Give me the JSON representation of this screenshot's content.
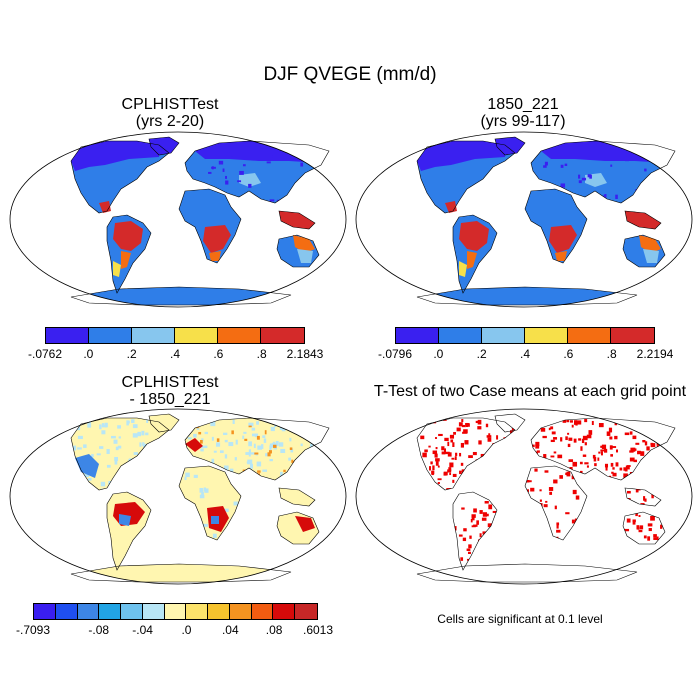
{
  "title": "DJF QVEGE (mm/d)",
  "panels": [
    {
      "title1": "CPLHISTTest",
      "title2": "(yrs 2-20)"
    },
    {
      "title1": "1850_221",
      "title2": "(yrs 99-117)"
    },
    {
      "title1": "CPLHISTTest",
      "title2": "- 1850_221"
    },
    {
      "title1": "T-Test of two Case means at each grid point",
      "title2": ""
    }
  ],
  "colorbars": {
    "case1": {
      "colors": [
        "#3a20f0",
        "#2f7ee8",
        "#87c6ee",
        "#f7e04a",
        "#f46d12",
        "#d42a2a"
      ],
      "labels": [
        "-.0762",
        ".0",
        ".2",
        ".4",
        ".6",
        ".8",
        "2.1843"
      ]
    },
    "case2": {
      "colors": [
        "#3a20f0",
        "#2f7ee8",
        "#87c6ee",
        "#f7e04a",
        "#f46d12",
        "#d42a2a"
      ],
      "labels": [
        "-.0796",
        ".0",
        ".2",
        ".4",
        ".6",
        ".8",
        "2.2194"
      ]
    },
    "diff": {
      "colors": [
        "#3a1ef0",
        "#1f4ff0",
        "#3d86e6",
        "#22a4e4",
        "#6ec2ee",
        "#b8e6f6",
        "#fff6b0",
        "#fce36b",
        "#f6c32e",
        "#f49320",
        "#f25c11",
        "#d60a0a",
        "#c72727"
      ],
      "labels": [
        "-.7093",
        "-.08",
        "-.04",
        ".0",
        ".04",
        ".08",
        ".6013"
      ]
    }
  },
  "ttest_note": "Cells are significant at 0.1 level",
  "map_colors": {
    "ocean": "#ffffff",
    "case_land": "#2f7ee8",
    "case_high": "#d42a2a",
    "case_orange": "#f46d12",
    "case_yellow": "#f7e04a",
    "case_light": "#87c6ee",
    "case_low": "#3a20f0",
    "diff_land": "#fff6b0",
    "diff_light": "#b8e6f6",
    "diff_red": "#d60a0a",
    "diff_blue": "#3d86e6",
    "ttest_sig": "#ee0000"
  }
}
